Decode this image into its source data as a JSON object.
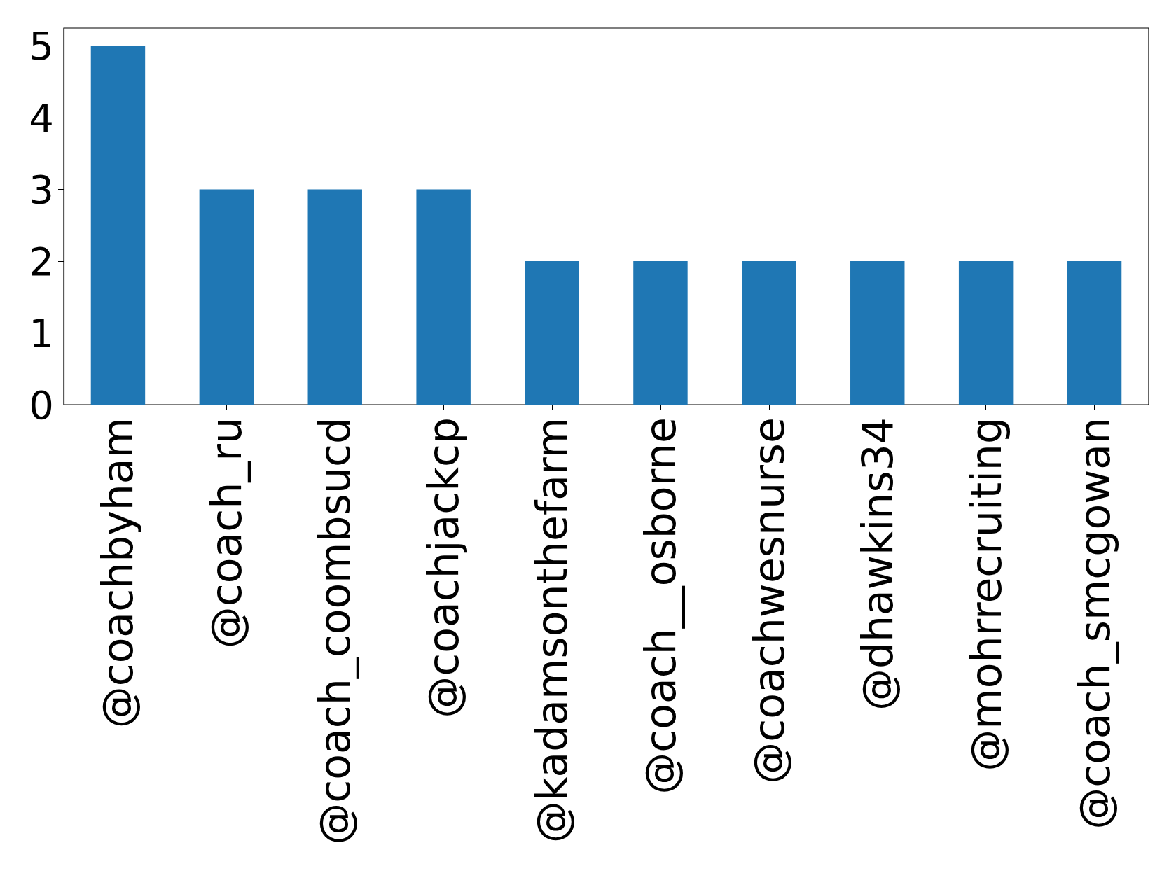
{
  "chart_data": {
    "type": "bar",
    "categories": [
      "@coachbyham",
      "@coach_ru",
      "@coach_coombsucd",
      "@coachjackcp",
      "@kadamsonthefarm",
      "@coach__osborne",
      "@coachwesnurse",
      "@dhawkins34",
      "@mohrrecruiting",
      "@coach_smcgowan"
    ],
    "values": [
      5,
      3,
      3,
      3,
      2,
      2,
      2,
      2,
      2,
      2
    ],
    "color": "#1f77b4",
    "ylim": [
      0,
      5.25
    ],
    "yticks": [
      0,
      1,
      2,
      3,
      4,
      5
    ],
    "grid": false
  }
}
